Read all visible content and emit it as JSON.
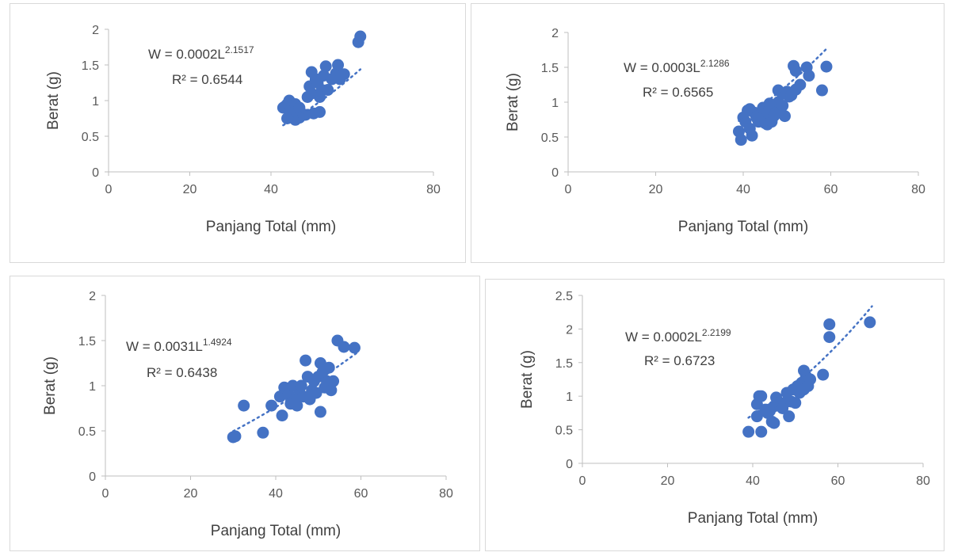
{
  "chart_data": [
    {
      "type": "scatter",
      "xlabel": "Panjang Total (mm)",
      "ylabel": "Berat (g)",
      "xlim": [
        0,
        80
      ],
      "ylim": [
        0,
        2
      ],
      "xticks": [
        "0",
        "20",
        "40",
        "80"
      ],
      "xtick_values": [
        0,
        20,
        40,
        80
      ],
      "yticks": [
        "0",
        "0.5",
        "1",
        "1.5",
        "2"
      ],
      "ytick_values": [
        0,
        0.5,
        1,
        1.5,
        2
      ],
      "equation_base": "W = 0.0002L",
      "equation_exp": "2.1517",
      "r2": "R² = 0.6544",
      "trend": {
        "a": 0.0002,
        "b": 2.1517,
        "x0": 43,
        "x1": 62
      },
      "marker_color": "#4472c4",
      "points": [
        [
          43,
          0.9
        ],
        [
          43.5,
          0.92
        ],
        [
          44,
          0.95
        ],
        [
          44.5,
          1.0
        ],
        [
          44,
          0.75
        ],
        [
          45,
          0.78
        ],
        [
          45,
          0.85
        ],
        [
          45.5,
          0.88
        ],
        [
          46,
          0.73
        ],
        [
          46,
          0.95
        ],
        [
          46.5,
          0.82
        ],
        [
          47,
          0.9
        ],
        [
          47,
          0.76
        ],
        [
          48,
          0.8
        ],
        [
          48.5,
          0.8
        ],
        [
          49,
          1.05
        ],
        [
          49.5,
          1.2
        ],
        [
          50,
          1.1
        ],
        [
          50.5,
          0.82
        ],
        [
          50,
          1.4
        ],
        [
          51,
          1.3
        ],
        [
          51.5,
          1.25
        ],
        [
          52,
          0.84
        ],
        [
          52,
          1.05
        ],
        [
          52.5,
          1.15
        ],
        [
          53,
          1.35
        ],
        [
          53.5,
          1.48
        ],
        [
          54,
          1.15
        ],
        [
          55,
          1.3
        ],
        [
          56,
          1.38
        ],
        [
          56.5,
          1.5
        ],
        [
          57,
          1.3
        ],
        [
          58,
          1.37
        ],
        [
          61.5,
          1.82
        ],
        [
          62,
          1.9
        ]
      ]
    },
    {
      "type": "scatter",
      "xlabel": "Panjang Total (mm)",
      "ylabel": "Berat (g)",
      "xlim": [
        0,
        80
      ],
      "ylim": [
        0,
        2
      ],
      "xticks": [
        "0",
        "20",
        "40",
        "60",
        "80"
      ],
      "xtick_values": [
        0,
        20,
        40,
        60,
        80
      ],
      "yticks": [
        "0",
        "0.5",
        "1",
        "1.5",
        "2"
      ],
      "ytick_values": [
        0,
        0.5,
        1,
        1.5,
        2
      ],
      "equation_base": "W = 0.0003L",
      "equation_exp": "2.1286",
      "r2": "R² = 0.6565",
      "trend": {
        "a": 0.0003,
        "b": 2.1286,
        "x0": 39,
        "x1": 59
      },
      "marker_color": "#4472c4",
      "points": [
        [
          39,
          0.58
        ],
        [
          39.5,
          0.46
        ],
        [
          40,
          0.78
        ],
        [
          40.5,
          0.72
        ],
        [
          41,
          0.88
        ],
        [
          41.5,
          0.9
        ],
        [
          41.5,
          0.62
        ],
        [
          42,
          0.52
        ],
        [
          42.5,
          0.85
        ],
        [
          43,
          0.78
        ],
        [
          43.5,
          0.72
        ],
        [
          44,
          0.82
        ],
        [
          44.5,
          0.92
        ],
        [
          45,
          0.7
        ],
        [
          45.5,
          0.68
        ],
        [
          45.5,
          0.85
        ],
        [
          46,
          0.9
        ],
        [
          46,
          0.98
        ],
        [
          46.5,
          0.72
        ],
        [
          47,
          0.8
        ],
        [
          47.5,
          0.85
        ],
        [
          48,
          1.0
        ],
        [
          48,
          1.17
        ],
        [
          48.5,
          0.9
        ],
        [
          49,
          0.95
        ],
        [
          49,
          1.12
        ],
        [
          49.5,
          0.8
        ],
        [
          50,
          1.15
        ],
        [
          50.5,
          1.08
        ],
        [
          51,
          1.1
        ],
        [
          51.5,
          1.52
        ],
        [
          52,
          1.45
        ],
        [
          52,
          1.18
        ],
        [
          53,
          1.25
        ],
        [
          54.5,
          1.5
        ],
        [
          55,
          1.38
        ],
        [
          58,
          1.17
        ],
        [
          59,
          1.51
        ]
      ]
    },
    {
      "type": "scatter",
      "xlabel": "Panjang Total (mm)",
      "ylabel": "Berat (g)",
      "xlim": [
        0,
        80
      ],
      "ylim": [
        0,
        2
      ],
      "xticks": [
        "0",
        "20",
        "40",
        "60",
        "80"
      ],
      "xtick_values": [
        0,
        20,
        40,
        60,
        80
      ],
      "yticks": [
        "0",
        "0.5",
        "1",
        "1.5",
        "2"
      ],
      "ytick_values": [
        0,
        0.5,
        1,
        1.5,
        2
      ],
      "equation_base": "W = 0.0031L",
      "equation_exp": "1.4924",
      "r2": "R² = 0.6438",
      "trend": {
        "a": 0.0031,
        "b": 1.4924,
        "x0": 30,
        "x1": 59
      },
      "marker_color": "#4472c4",
      "points": [
        [
          30,
          0.43
        ],
        [
          30.5,
          0.44
        ],
        [
          32.5,
          0.78
        ],
        [
          37,
          0.48
        ],
        [
          39,
          0.78
        ],
        [
          41,
          0.88
        ],
        [
          41.5,
          0.67
        ],
        [
          42,
          0.98
        ],
        [
          43,
          0.9
        ],
        [
          43.5,
          0.8
        ],
        [
          44,
          1.0
        ],
        [
          44.5,
          0.85
        ],
        [
          45,
          0.78
        ],
        [
          45.5,
          0.95
        ],
        [
          46,
          1.0
        ],
        [
          46.5,
          0.88
        ],
        [
          47,
          1.28
        ],
        [
          47.5,
          1.1
        ],
        [
          48,
          0.85
        ],
        [
          48.5,
          0.95
        ],
        [
          49,
          1.05
        ],
        [
          49.5,
          0.92
        ],
        [
          50,
          1.1
        ],
        [
          50.5,
          0.71
        ],
        [
          50.5,
          1.25
        ],
        [
          51,
          1.15
        ],
        [
          51.5,
          0.98
        ],
        [
          52,
          1.05
        ],
        [
          52.5,
          1.2
        ],
        [
          53,
          0.95
        ],
        [
          53.5,
          1.05
        ],
        [
          54.5,
          1.5
        ],
        [
          56,
          1.43
        ],
        [
          58.5,
          1.42
        ]
      ]
    },
    {
      "type": "scatter",
      "xlabel": "Panjang Total (mm)",
      "ylabel": "Berat (g)",
      "xlim": [
        0,
        80
      ],
      "ylim": [
        0,
        2.5
      ],
      "xticks": [
        "0",
        "20",
        "40",
        "60",
        "80"
      ],
      "xtick_values": [
        0,
        20,
        40,
        60,
        80
      ],
      "yticks": [
        "0",
        "0.5",
        "1",
        "1.5",
        "2",
        "2.5"
      ],
      "ytick_values": [
        0,
        0.5,
        1,
        1.5,
        2,
        2.5
      ],
      "equation_base": "W = 0.0002L",
      "equation_exp": "2.2199",
      "r2": "R² = 0.6723",
      "trend": {
        "a": 0.0002,
        "b": 2.2199,
        "x0": 39,
        "x1": 68
      },
      "marker_color": "#4472c4",
      "points": [
        [
          39,
          0.47
        ],
        [
          41,
          0.7
        ],
        [
          41,
          0.88
        ],
        [
          41.5,
          1.0
        ],
        [
          42,
          0.47
        ],
        [
          42,
          1.0
        ],
        [
          43,
          0.8
        ],
        [
          43.5,
          0.75
        ],
        [
          44,
          0.78
        ],
        [
          44.5,
          0.62
        ],
        [
          45,
          0.6
        ],
        [
          45,
          0.85
        ],
        [
          45.5,
          0.98
        ],
        [
          46,
          0.9
        ],
        [
          46.5,
          0.85
        ],
        [
          47,
          0.82
        ],
        [
          47.5,
          0.9
        ],
        [
          48,
          1.05
        ],
        [
          48.5,
          0.7
        ],
        [
          49,
          0.92
        ],
        [
          49.5,
          1.1
        ],
        [
          50,
          0.9
        ],
        [
          50.5,
          1.15
        ],
        [
          51,
          1.05
        ],
        [
          51.5,
          1.2
        ],
        [
          52,
          1.1
        ],
        [
          52,
          1.38
        ],
        [
          52.5,
          1.3
        ],
        [
          53,
          1.15
        ],
        [
          53.5,
          1.25
        ],
        [
          56.5,
          1.32
        ],
        [
          58,
          2.07
        ],
        [
          58,
          1.88
        ],
        [
          67.5,
          2.1
        ]
      ]
    }
  ]
}
